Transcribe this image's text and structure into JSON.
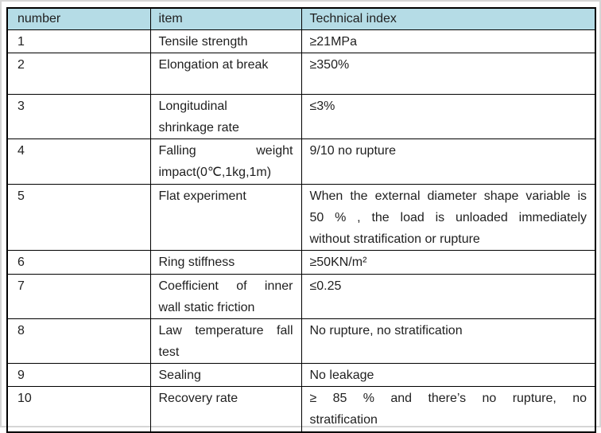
{
  "colors": {
    "header_background": "#b5dce6",
    "table_border": "#000000",
    "text": "#1f1f1f",
    "page_edge": "#d6d6d6"
  },
  "table": {
    "headers": {
      "number": "number",
      "item": "item",
      "index": "Technical index"
    },
    "rows": [
      {
        "number": "1",
        "item": [
          "Tensile strength"
        ],
        "index": [
          "≥21MPa"
        ]
      },
      {
        "number": "2",
        "item": [
          "Elongation at break"
        ],
        "index": [
          "≥350%"
        ]
      },
      {
        "number": "3",
        "item": [
          "Longitudinal",
          "shrinkage rate"
        ],
        "index": [
          "≤3%"
        ]
      },
      {
        "number": "4",
        "item": [
          "Falling weight",
          "impact(0℃,1kg,1m)"
        ],
        "index": [
          "9/10 no rupture"
        ]
      },
      {
        "number": "5",
        "item": [
          "Flat experiment"
        ],
        "index": [
          "When the external diameter shape variable is",
          "50 % , the load is unloaded immediately",
          "without stratification or rupture"
        ]
      },
      {
        "number": "6",
        "item": [
          "Ring stiffness"
        ],
        "index": [
          "≥50KN/m²"
        ]
      },
      {
        "number": "7",
        "item": [
          "Coefficient of inner",
          "wall static friction"
        ],
        "index": [
          "≤0.25"
        ]
      },
      {
        "number": "8",
        "item": [
          "Law temperature fall",
          "test"
        ],
        "index": [
          "No rupture, no stratification"
        ]
      },
      {
        "number": "9",
        "item": [
          "Sealing"
        ],
        "index": [
          "No leakage"
        ]
      },
      {
        "number": "10",
        "item": [
          "Recovery rate"
        ],
        "index": [
          "≥ 85 % and there’s no rupture, no",
          "stratification"
        ]
      }
    ]
  }
}
